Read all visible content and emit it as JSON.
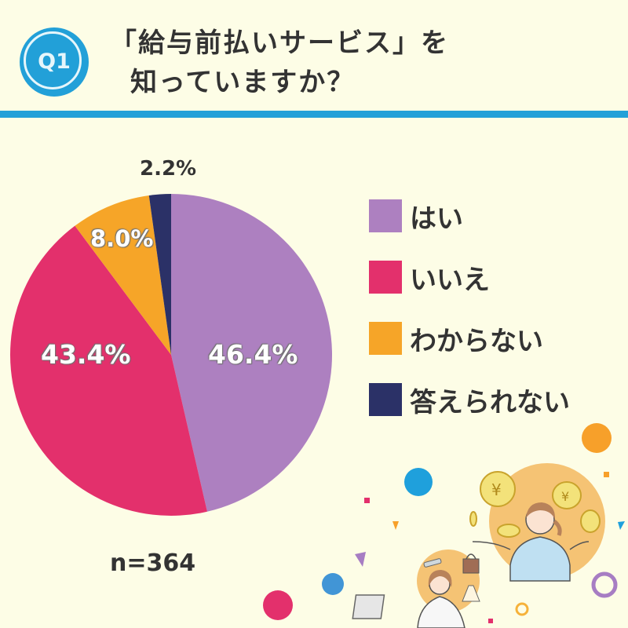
{
  "header": {
    "badge": "Q1",
    "title_line1": "「給与前払いサービス」を",
    "title_line2": "知っていますか？"
  },
  "colors": {
    "background": "#fdfde6",
    "accent_blue": "#22a0d8",
    "yes": "#ad80c0",
    "no": "#e3306c",
    "dont_know": "#f6a528",
    "cannot_answer": "#2b3167"
  },
  "legend": [
    {
      "label": "はい",
      "color": "#ad80c0"
    },
    {
      "label": "いいえ",
      "color": "#e3306c"
    },
    {
      "label": "わからない",
      "color": "#f6a528"
    },
    {
      "label": "答えられない",
      "color": "#2b3167"
    }
  ],
  "labels": {
    "yes": "46.4%",
    "no": "43.4%",
    "dont_know": "8.0%",
    "cannot_answer": "2.2%"
  },
  "sample_size": "n=364",
  "chart_data": {
    "type": "pie",
    "title": "「給与前払いサービス」を知っていますか？",
    "categories": [
      "はい",
      "いいえ",
      "わからない",
      "答えられない"
    ],
    "values": [
      46.4,
      43.4,
      8.0,
      2.2
    ],
    "unit": "%",
    "colors": [
      "#ad80c0",
      "#e3306c",
      "#f6a528",
      "#2b3167"
    ],
    "start_angle": "12 o'clock, clockwise",
    "legend_position": "right",
    "n": 364
  }
}
